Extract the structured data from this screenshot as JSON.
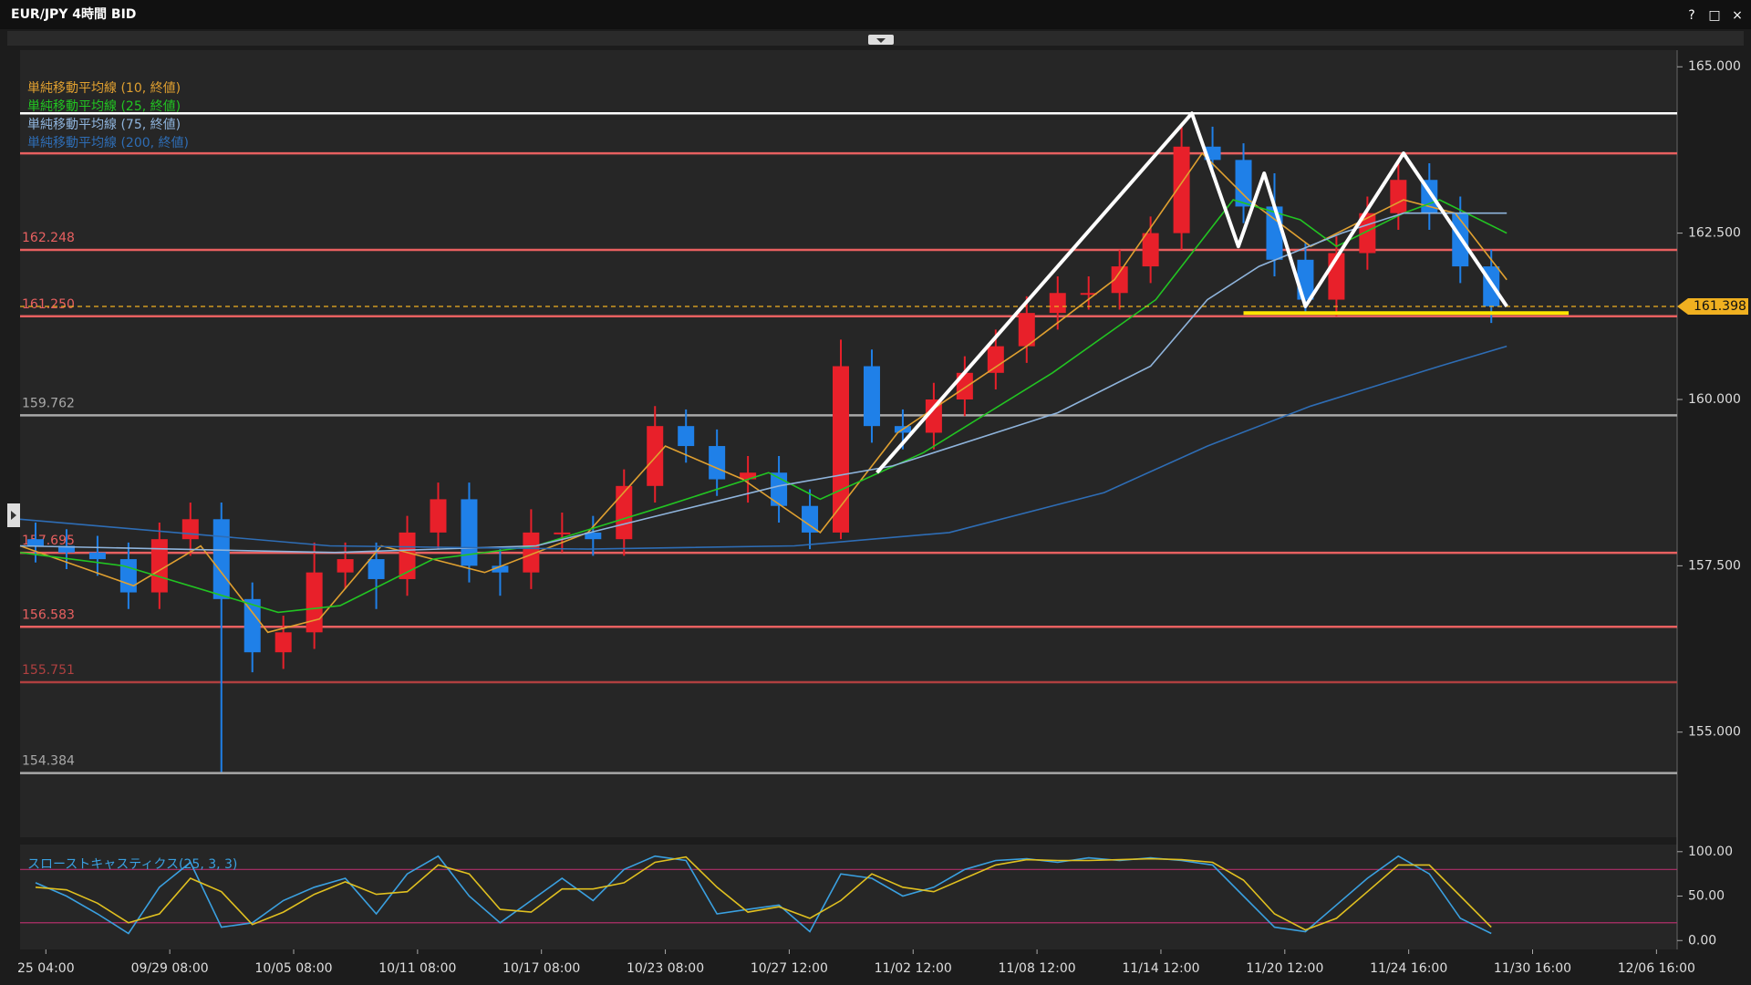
{
  "window": {
    "title": "EUR/JPY 4時間 BID",
    "buttons": [
      "?",
      "□",
      "×"
    ]
  },
  "chart_data": [
    {
      "type": "candlestick",
      "x": [
        3,
        9,
        15,
        21,
        27,
        33,
        39,
        45,
        51,
        57,
        63,
        69,
        75,
        81,
        87,
        93,
        99,
        105,
        111,
        117,
        123,
        129,
        135,
        141,
        147,
        153,
        159,
        165,
        171,
        177,
        183,
        189,
        195,
        201,
        207,
        213,
        219,
        225,
        231,
        237,
        243,
        249,
        255,
        261,
        267,
        273,
        279,
        285
      ],
      "open": [
        157.9,
        157.8,
        157.7,
        157.6,
        157.1,
        157.9,
        158.2,
        157.0,
        156.2,
        156.5,
        157.4,
        157.6,
        157.3,
        158.0,
        158.5,
        157.5,
        157.4,
        158.0,
        158.0,
        157.9,
        158.7,
        159.6,
        159.3,
        158.8,
        158.9,
        158.4,
        158.0,
        160.5,
        159.6,
        159.5,
        160.0,
        160.4,
        160.8,
        161.3,
        161.6,
        161.6,
        162.0,
        162.5,
        163.8,
        163.6,
        162.9,
        162.1,
        161.5,
        162.2,
        162.8,
        163.3,
        162.8,
        162.0
      ],
      "high": [
        158.15,
        158.05,
        157.95,
        157.85,
        158.15,
        158.45,
        158.45,
        157.25,
        156.75,
        157.85,
        157.85,
        157.85,
        158.25,
        158.75,
        158.75,
        157.75,
        158.35,
        158.3,
        158.25,
        158.95,
        159.9,
        159.85,
        159.55,
        159.15,
        159.15,
        158.65,
        160.9,
        160.75,
        159.85,
        160.25,
        160.65,
        161.05,
        161.55,
        161.85,
        161.85,
        162.25,
        162.75,
        164.1,
        164.1,
        163.85,
        163.4,
        162.35,
        162.45,
        163.05,
        163.55,
        163.55,
        163.05,
        162.25
      ],
      "low": [
        157.55,
        157.45,
        157.35,
        156.85,
        156.85,
        157.65,
        154.4,
        155.9,
        155.95,
        156.25,
        157.15,
        156.85,
        157.05,
        157.75,
        157.25,
        157.05,
        157.15,
        157.7,
        157.65,
        157.65,
        158.45,
        159.05,
        158.55,
        158.45,
        158.15,
        157.75,
        157.9,
        159.35,
        159.25,
        159.25,
        159.75,
        160.15,
        160.55,
        161.05,
        161.35,
        161.35,
        161.75,
        162.25,
        163.35,
        162.65,
        161.85,
        161.3,
        161.25,
        161.95,
        162.55,
        162.55,
        161.75,
        161.15
      ],
      "close": [
        157.8,
        157.7,
        157.6,
        157.1,
        157.9,
        158.2,
        157.0,
        156.2,
        156.5,
        157.4,
        157.6,
        157.3,
        158.0,
        158.5,
        157.5,
        157.4,
        158.0,
        158.0,
        157.9,
        158.7,
        159.6,
        159.3,
        158.8,
        158.9,
        158.4,
        158.0,
        160.5,
        159.6,
        159.5,
        160.0,
        160.4,
        160.8,
        161.3,
        161.6,
        161.6,
        162.0,
        162.5,
        163.8,
        163.6,
        162.9,
        162.1,
        161.5,
        162.2,
        162.8,
        163.3,
        162.8,
        162.0,
        161.4
      ],
      "up_color": "#e8202a",
      "down_color": "#1f80e8",
      "overlays": [
        {
          "name": "単純移動平均線 (10, 終値)",
          "color": "#e0a030",
          "x": [
            0,
            22,
            35,
            48,
            58,
            70,
            90,
            110,
            125,
            140,
            155,
            170,
            195,
            212,
            229,
            238,
            250,
            268,
            278,
            288
          ],
          "values": [
            157.8,
            157.2,
            157.8,
            156.5,
            156.7,
            157.8,
            157.4,
            158.0,
            159.3,
            158.8,
            158.0,
            159.5,
            160.8,
            161.8,
            163.7,
            163.0,
            162.3,
            163.0,
            162.8,
            161.8
          ]
        },
        {
          "name": "単純移動平均線 (25, 終値)",
          "color": "#22c422",
          "x": [
            0,
            20,
            50,
            62,
            80,
            100,
            125,
            145,
            155,
            175,
            200,
            220,
            235,
            248,
            255,
            268,
            275,
            288
          ],
          "values": [
            157.7,
            157.5,
            156.8,
            156.9,
            157.6,
            157.8,
            158.4,
            158.9,
            158.5,
            159.2,
            160.4,
            161.5,
            163.0,
            162.7,
            162.3,
            162.8,
            163.0,
            162.5
          ]
        },
        {
          "name": "単純移動平均線 (75, 終値)",
          "color": "#8fb4dc",
          "x": [
            0,
            61,
            100,
            126,
            147,
            169,
            201,
            219,
            230,
            240,
            256,
            268,
            288
          ],
          "values": [
            157.8,
            157.7,
            157.8,
            158.3,
            158.7,
            159.0,
            159.8,
            160.5,
            161.5,
            162.0,
            162.5,
            162.8,
            162.8
          ]
        },
        {
          "name": "単純移動平均線 (200, 終値)",
          "color": "#2e6db5",
          "x": [
            0,
            60,
            110,
            150,
            180,
            210,
            230,
            250,
            275,
            288
          ],
          "values": [
            158.2,
            157.8,
            157.75,
            157.8,
            158.0,
            158.6,
            159.3,
            159.9,
            160.5,
            160.8
          ]
        }
      ],
      "legend": "top-left",
      "levels": [
        {
          "value": 164.3,
          "color": "#ffffff"
        },
        {
          "value": 163.7,
          "color": "#e86060"
        },
        {
          "value": 162.248,
          "color": "#e86060"
        },
        {
          "value": 161.25,
          "label": "161.250",
          "color": "#e86060"
        },
        {
          "value": 159.762,
          "color": "#a8a8a8"
        },
        {
          "value": 157.695,
          "color": "#e86060"
        },
        {
          "value": 156.583,
          "color": "#e86060"
        },
        {
          "value": 155.751,
          "color": "#b04040"
        },
        {
          "value": 154.384,
          "color": "#a8a8a8"
        }
      ],
      "current_price": 161.398,
      "current_color": "#f0b020",
      "drawings": [
        {
          "color": "#ffffff",
          "x": [
            166,
            227,
            236,
            241,
            249,
            268,
            288
          ],
          "y": [
            158.9,
            164.3,
            162.3,
            163.4,
            161.4,
            163.7,
            161.4
          ]
        },
        {
          "color": "#ffe600",
          "x": [
            237,
            300
          ],
          "y": [
            161.3,
            161.3
          ]
        }
      ],
      "xlim": [
        0,
        321
      ],
      "ylim": [
        153.42,
        165.25
      ],
      "yticks": [
        {
          "value": 165,
          "label": "165.000"
        },
        {
          "value": 162.5,
          "label": "162.500"
        },
        {
          "value": 160,
          "label": "160.000"
        },
        {
          "value": 157.5,
          "label": "157.500"
        },
        {
          "value": 155,
          "label": "155.000"
        }
      ]
    },
    {
      "type": "line",
      "title": "スローストキャスティクス(25, 3, 3)",
      "x": [
        3,
        9,
        15,
        21,
        27,
        33,
        39,
        45,
        51,
        57,
        63,
        69,
        75,
        81,
        87,
        93,
        99,
        105,
        111,
        117,
        123,
        129,
        135,
        141,
        147,
        153,
        159,
        165,
        171,
        177,
        183,
        189,
        195,
        201,
        207,
        213,
        219,
        225,
        231,
        237,
        243,
        249,
        255,
        261,
        267,
        273,
        279,
        285
      ],
      "series": [
        {
          "color": "#3aa0e0",
          "values": [
            65,
            50,
            30,
            8,
            60,
            88,
            15,
            20,
            45,
            60,
            70,
            30,
            75,
            95,
            50,
            20,
            45,
            70,
            45,
            80,
            95,
            90,
            30,
            35,
            40,
            10,
            75,
            70,
            50,
            60,
            80,
            90,
            92,
            88,
            93,
            90,
            93,
            90,
            85,
            50,
            15,
            10,
            40,
            70,
            95,
            75,
            25,
            8
          ]
        },
        {
          "color": "#e0c020",
          "values": [
            60,
            57,
            42,
            20,
            30,
            70,
            55,
            18,
            32,
            52,
            66,
            52,
            55,
            85,
            75,
            35,
            32,
            58,
            58,
            65,
            88,
            94,
            60,
            32,
            38,
            25,
            45,
            75,
            60,
            55,
            70,
            85,
            91,
            90,
            90,
            91,
            92,
            91,
            88,
            68,
            30,
            12,
            25,
            55,
            85,
            85,
            50,
            15
          ]
        }
      ],
      "levels": [
        {
          "value": 80,
          "color": "#b0306a"
        },
        {
          "value": 20,
          "color": "#b0306a"
        }
      ],
      "xlim": [
        0,
        321
      ],
      "ylim": [
        -10,
        108
      ],
      "yticks": [
        {
          "value": 100,
          "label": "100.00"
        },
        {
          "value": 50,
          "label": "50.00"
        },
        {
          "value": 0,
          "label": "0.00"
        }
      ],
      "xticks": [
        {
          "value": 5,
          "label": "25 04:00"
        },
        {
          "value": 29,
          "label": "09/29 08:00"
        },
        {
          "value": 53,
          "label": "10/05 08:00"
        },
        {
          "value": 77,
          "label": "10/11 08:00"
        },
        {
          "value": 101,
          "label": "10/17 08:00"
        },
        {
          "value": 125,
          "label": "10/23 08:00"
        },
        {
          "value": 149,
          "label": "10/27 12:00"
        },
        {
          "value": 173,
          "label": "11/02 12:00"
        },
        {
          "value": 197,
          "label": "11/08 12:00"
        },
        {
          "value": 221,
          "label": "11/14 12:00"
        },
        {
          "value": 245,
          "label": "11/20 12:00"
        },
        {
          "value": 269,
          "label": "11/24 16:00"
        },
        {
          "value": 293,
          "label": "11/30 16:00"
        },
        {
          "value": 317,
          "label": "12/06 16:00"
        }
      ]
    }
  ]
}
